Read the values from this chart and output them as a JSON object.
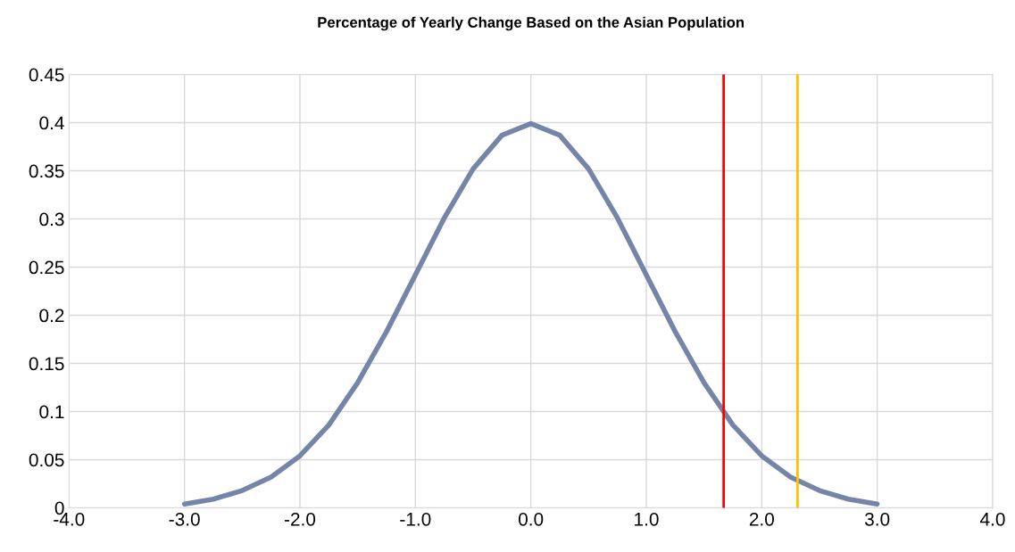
{
  "chart_data": {
    "type": "line",
    "title": "Percentage of Yearly Change Based on the Asian Population",
    "x": [
      -3,
      -2.75,
      -2.5,
      -2.25,
      -2,
      -1.75,
      -1.5,
      -1.25,
      -1,
      -0.75,
      -0.5,
      -0.25,
      0,
      0.25,
      0.5,
      0.75,
      1,
      1.25,
      1.5,
      1.75,
      2,
      2.25,
      2.5,
      2.75,
      3
    ],
    "series": [
      {
        "color": "#7585a8",
        "values": [
          0.004,
          0.009,
          0.018,
          0.032,
          0.054,
          0.086,
          0.13,
          0.183,
          0.242,
          0.301,
          0.352,
          0.387,
          0.399,
          0.387,
          0.352,
          0.301,
          0.242,
          0.183,
          0.13,
          0.086,
          0.054,
          0.032,
          0.018,
          0.009,
          0.004
        ]
      }
    ],
    "xlim": [
      -4,
      4
    ],
    "xticks": [
      {
        "value": -4,
        "label": "-4.0"
      },
      {
        "value": -3,
        "label": "-3.0"
      },
      {
        "value": -2,
        "label": "-2.0"
      },
      {
        "value": -1,
        "label": "-1.0"
      },
      {
        "value": 0,
        "label": "0.0"
      },
      {
        "value": 1,
        "label": "1.0"
      },
      {
        "value": 2,
        "label": "2.0"
      },
      {
        "value": 3,
        "label": "3.0"
      },
      {
        "value": 4,
        "label": "4.0"
      }
    ],
    "ylim": [
      0,
      0.45
    ],
    "yticks": [
      0,
      0.05,
      0.1,
      0.15,
      0.2,
      0.25,
      0.3,
      0.35,
      0.4,
      0.45
    ],
    "ref_lines": [
      {
        "axis": "x",
        "value": 1.67,
        "color": "#ff0000"
      },
      {
        "axis": "x",
        "value": 2.31,
        "color": "#ffc000"
      }
    ],
    "grid": true,
    "legend": false,
    "marker": "none",
    "line_style": "solid"
  }
}
